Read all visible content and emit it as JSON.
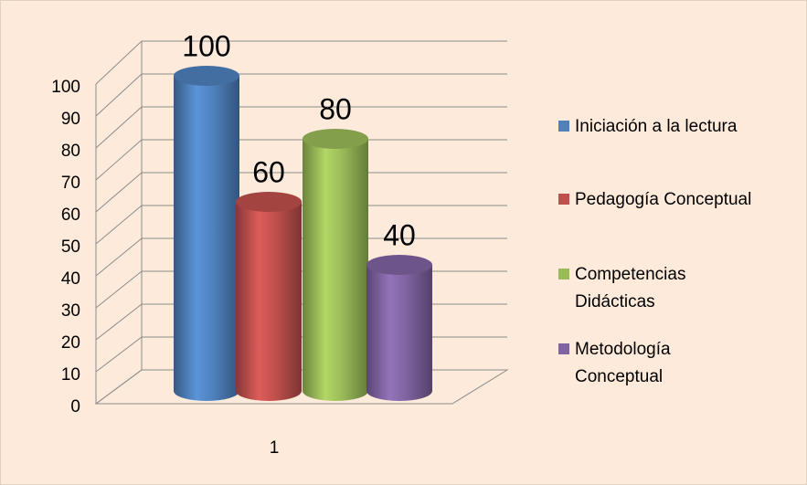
{
  "chart_data": {
    "type": "bar",
    "categories": [
      "1"
    ],
    "series": [
      {
        "name": "Iniciación a la lectura",
        "color": "#4f81bd",
        "values": [
          100
        ]
      },
      {
        "name": "Pedagogía Conceptual",
        "color": "#c0504d",
        "values": [
          60
        ]
      },
      {
        "name": "Competencias Didácticas",
        "color": "#9bbb59",
        "values": [
          80
        ]
      },
      {
        "name": "Metodología Conceptual",
        "color": "#8064a2",
        "values": [
          40
        ]
      }
    ],
    "ylim": [
      0,
      100
    ],
    "yticks": [
      0,
      10,
      20,
      30,
      40,
      50,
      60,
      70,
      80,
      90,
      100
    ],
    "grid": true,
    "legend": "right"
  }
}
